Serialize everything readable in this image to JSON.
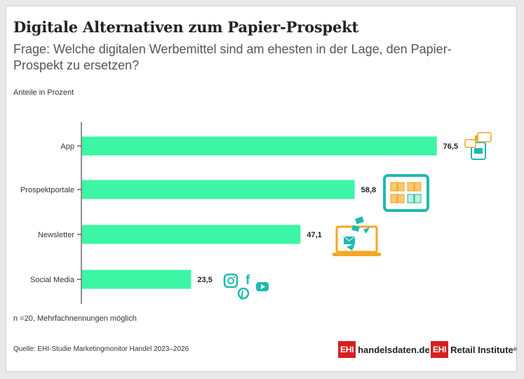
{
  "header": {
    "title": "Digitale Alternativen zum Papier-Prospekt",
    "subtitle": "Frage: Welche digitalen Werbemittel sind am ehesten in der Lage, den Papier-Prospekt zu ersetzen?",
    "unit_label": "Anteile in Prozent"
  },
  "footer": {
    "note": "n =20, Mehrfachnennungen möglich",
    "source": "Quelle: EHI-Studie Marketingmonitor Handel 2023–2026",
    "logo1_badge": "EHI",
    "logo1_text": "handelsdaten.de",
    "logo2_badge": "EHI",
    "logo2_text": "Retail Institute",
    "logo2_mark": "®"
  },
  "chart_data": {
    "type": "bar",
    "orientation": "horizontal",
    "categories": [
      "App",
      "Prospektportale",
      "Newsletter",
      "Social Media"
    ],
    "values": [
      76.5,
      58.8,
      47.1,
      23.5
    ],
    "value_labels": [
      "76,5",
      "58,8",
      "47,1",
      "23,5"
    ],
    "ylabel": "Anteile in Prozent",
    "xlim": [
      0,
      100
    ],
    "grid": false,
    "bar_color": "#3cf5a5",
    "icon_color_orange": "#f5a623",
    "icon_color_teal": "#1fb9b0",
    "icons": [
      "app-icon",
      "leaflet-portal-icon",
      "newsletter-laptop-icon",
      "social-media-icon"
    ]
  }
}
